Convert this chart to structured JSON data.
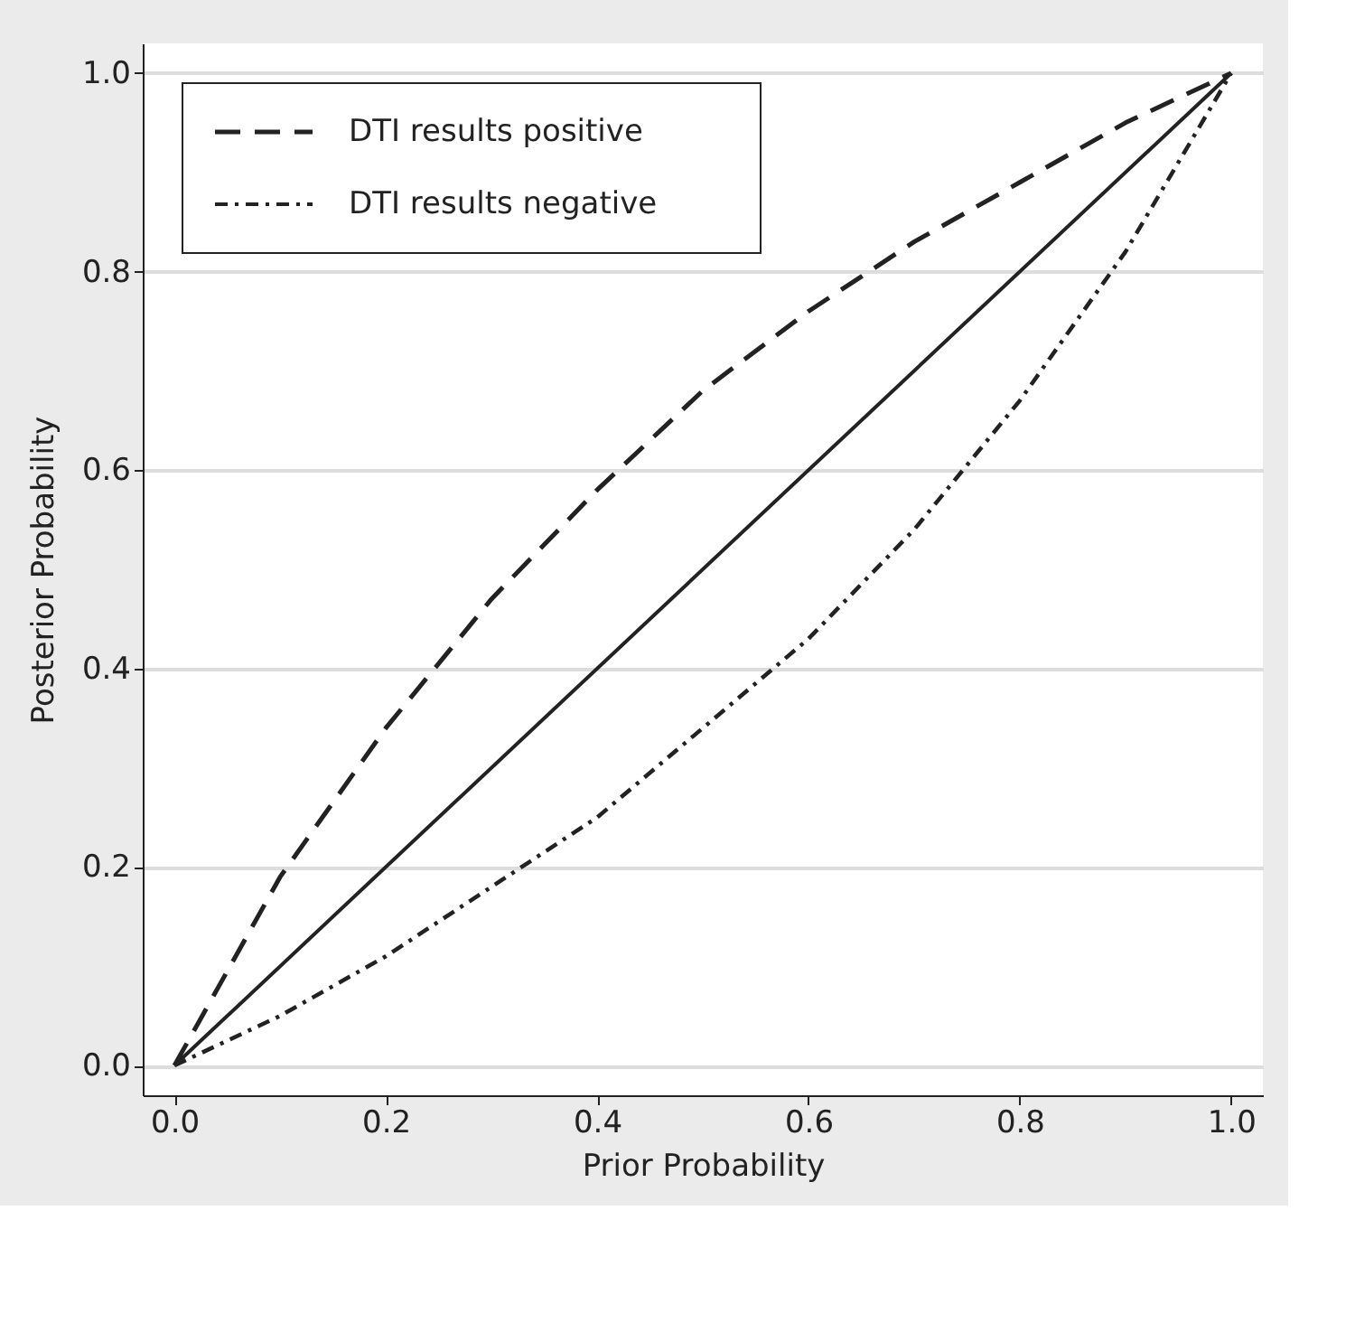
{
  "chart_data": {
    "type": "line",
    "xlabel": "Prior Probability",
    "ylabel": "Posterior Probability",
    "x": [
      0,
      0.1,
      0.2,
      0.3,
      0.4,
      0.5,
      0.6,
      0.7,
      0.8,
      0.9,
      1.0
    ],
    "series": [
      {
        "name": "DTI results positive",
        "color": "#222222",
        "line_style": "dashed",
        "values": [
          0,
          0.19,
          0.34,
          0.47,
          0.58,
          0.68,
          0.76,
          0.83,
          0.89,
          0.95,
          1.0
        ]
      },
      {
        "name": "DTI results negative",
        "color": "#222222",
        "line_style": "dotted",
        "values": [
          0,
          0.05,
          0.11,
          0.18,
          0.25,
          0.34,
          0.43,
          0.54,
          0.67,
          0.82,
          1.0
        ]
      },
      {
        "color": "#222222",
        "line_style": "solid",
        "x": [
          0,
          1.0
        ],
        "values": [
          0,
          1.0
        ]
      }
    ],
    "xlim": [
      -0.03,
      1.03
    ],
    "ylim": [
      -0.03,
      1.03
    ],
    "xticks": [
      {
        "value": 0,
        "label": "0.0"
      },
      0.2,
      0.4,
      0.6,
      0.8,
      {
        "value": 1,
        "label": "1.0"
      }
    ],
    "yticks": [
      {
        "value": 0,
        "label": "0.0"
      },
      0.2,
      0.4,
      0.6,
      0.8,
      {
        "value": 1,
        "label": "1.0"
      }
    ],
    "grid": "y",
    "legend": "top left",
    "marker": "none"
  }
}
